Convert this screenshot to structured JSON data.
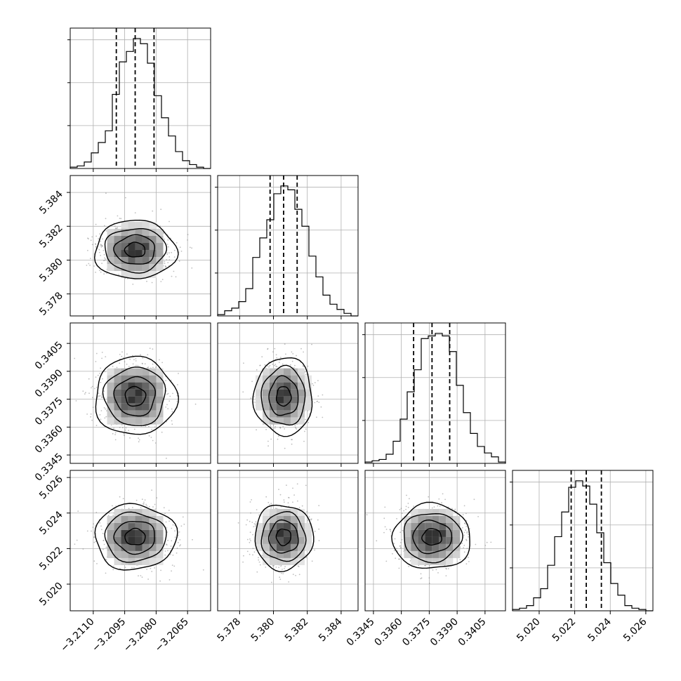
{
  "chart_data": {
    "type": "corner",
    "n_params": 4,
    "params": [
      {
        "range": [
          -3.2121,
          -3.2054
        ],
        "median": -3.209,
        "q16": -3.2099,
        "q84": -3.2081,
        "ticks": [
          -3.211,
          -3.2095,
          -3.208,
          -3.2065
        ],
        "tick_labels": [
          "−3.2110",
          "−3.2095",
          "−3.2080",
          "−3.2065"
        ]
      },
      {
        "range": [
          5.3767,
          5.385
        ],
        "median": 5.3806,
        "q16": 5.3798,
        "q84": 5.3814,
        "ticks": [
          5.378,
          5.38,
          5.382,
          5.384
        ],
        "tick_labels": [
          "5.378",
          "5.380",
          "5.382",
          "5.384"
        ]
      },
      {
        "range": [
          0.33405,
          0.3416
        ],
        "median": 0.33765,
        "q16": 0.33666,
        "q84": 0.3386,
        "ticks": [
          0.3345,
          0.336,
          0.3375,
          0.339,
          0.3405
        ],
        "tick_labels": [
          "0.3345",
          "0.3360",
          "0.3375",
          "0.3390",
          "0.3405"
        ]
      },
      {
        "range": [
          5.0185,
          5.0264
        ],
        "median": 5.02265,
        "q16": 5.0218,
        "q84": 5.0235,
        "ticks": [
          5.02,
          5.022,
          5.024,
          5.026
        ],
        "tick_labels": [
          "5.020",
          "5.022",
          "5.024",
          "5.026"
        ]
      }
    ],
    "histograms": [
      [
        1,
        2,
        5,
        12,
        20,
        29,
        57,
        82,
        90,
        100,
        96,
        81,
        56,
        39,
        25,
        13,
        6,
        3,
        1,
        0
      ],
      [
        1,
        4,
        6,
        11,
        21,
        45,
        60,
        74,
        94,
        100,
        97,
        82,
        69,
        46,
        30,
        16,
        9,
        5,
        2,
        0
      ],
      [
        1,
        2,
        3,
        7,
        17,
        34,
        55,
        72,
        96,
        98,
        100,
        98,
        86,
        60,
        39,
        23,
        13,
        8,
        5,
        1
      ],
      [
        1,
        2,
        4,
        10,
        17,
        35,
        57,
        76,
        95,
        100,
        96,
        82,
        60,
        37,
        21,
        12,
        4,
        2,
        1,
        0
      ]
    ],
    "hist_ylim": [
      0,
      108
    ],
    "correlation": 0,
    "contour_levels_sigma": [
      0.5,
      1.0,
      1.5,
      2.0
    ],
    "quantiles": [
      0.16,
      0.5,
      0.84
    ],
    "grid": true,
    "title": "",
    "xlabel": "",
    "ylabel": ""
  }
}
